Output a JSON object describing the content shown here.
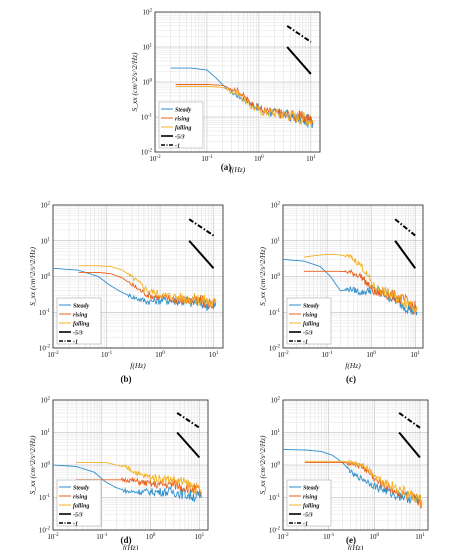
{
  "figure": {
    "panel_labels": [
      "(a)",
      "(b)",
      "(c)",
      "(d)",
      "(e)"
    ],
    "series_colors": {
      "Steady": "#2e8fcd",
      "rising": "#e8611a",
      "falling": "#f2b124",
      "slope": "#000000"
    }
  },
  "chart_data": [
    {
      "panel": "(a)",
      "type": "line",
      "xlabel": "f(Hz)",
      "ylabel": "S_xx (cm^2/s^2/Hz)",
      "x_scale": "log",
      "y_scale": "log",
      "xlim": [
        0.01,
        15
      ],
      "ylim": [
        0.01,
        100
      ],
      "x_ticks": [
        "10^-2",
        "10^-1",
        "10^0",
        "10^1"
      ],
      "y_ticks": [
        "10^-2",
        "10^-1",
        "10^0",
        "10^1",
        "10^2"
      ],
      "legend": {
        "position": "bottom-left",
        "entries": [
          "Steady",
          "rising",
          "falling",
          "-5/3",
          "-1"
        ]
      },
      "series": [
        {
          "name": "Steady",
          "x": [
            0.02,
            0.05,
            0.1,
            0.15,
            0.25,
            0.4,
            0.7,
            1.2,
            3,
            6,
            11
          ],
          "y": [
            2.5,
            2.5,
            2.2,
            1.3,
            0.6,
            0.4,
            0.25,
            0.15,
            0.12,
            0.09,
            0.07
          ]
        },
        {
          "name": "rising",
          "x": [
            0.025,
            0.06,
            0.1,
            0.2,
            0.4,
            0.7,
            1.2,
            3,
            6,
            11
          ],
          "y": [
            0.85,
            0.85,
            0.85,
            0.8,
            0.55,
            0.25,
            0.15,
            0.12,
            0.1,
            0.08
          ]
        },
        {
          "name": "falling",
          "x": [
            0.025,
            0.06,
            0.1,
            0.2,
            0.4,
            0.7,
            1.2,
            3,
            6,
            11
          ],
          "y": [
            0.75,
            0.75,
            0.75,
            0.7,
            0.45,
            0.2,
            0.14,
            0.12,
            0.1,
            0.08
          ]
        }
      ],
      "reference_lines": [
        {
          "name": "-5/3",
          "x": [
            3.5,
            10
          ],
          "y": [
            10,
            1.7
          ]
        },
        {
          "name": "-1",
          "x": [
            3.5,
            10
          ],
          "y": [
            40,
            14
          ]
        }
      ]
    },
    {
      "panel": "(b)",
      "type": "line",
      "xlabel": "f(Hz)",
      "ylabel": "S_xx (cm^2/s^2/Hz)",
      "x_scale": "log",
      "y_scale": "log",
      "xlim": [
        0.01,
        15
      ],
      "ylim": [
        0.01,
        100
      ],
      "x_ticks": [
        "10^-2",
        "10^-1",
        "10^0",
        "10^1"
      ],
      "y_ticks": [
        "10^-2",
        "10^-1",
        "10^0",
        "10^1",
        "10^2"
      ],
      "legend": {
        "position": "bottom-left",
        "entries": [
          "Steady",
          "rising",
          "falling",
          "-5/3",
          "-1"
        ]
      },
      "series": [
        {
          "name": "Steady",
          "x": [
            0.01,
            0.03,
            0.07,
            0.12,
            0.2,
            0.35,
            0.6,
            1.2,
            3,
            6,
            11
          ],
          "y": [
            1.7,
            1.5,
            1.0,
            0.55,
            0.35,
            0.25,
            0.2,
            0.22,
            0.2,
            0.18,
            0.15
          ]
        },
        {
          "name": "rising",
          "x": [
            0.03,
            0.07,
            0.12,
            0.2,
            0.35,
            0.6,
            1.2,
            3,
            6,
            11
          ],
          "y": [
            1.3,
            1.3,
            1.2,
            0.9,
            0.5,
            0.3,
            0.25,
            0.22,
            0.2,
            0.17
          ]
        },
        {
          "name": "falling",
          "x": [
            0.03,
            0.07,
            0.12,
            0.2,
            0.35,
            0.6,
            1.2,
            3,
            6,
            11
          ],
          "y": [
            2.0,
            2.0,
            1.9,
            1.5,
            0.8,
            0.4,
            0.3,
            0.25,
            0.22,
            0.18
          ]
        }
      ],
      "reference_lines": [
        {
          "name": "-5/3",
          "x": [
            3.5,
            10
          ],
          "y": [
            10,
            1.7
          ]
        },
        {
          "name": "-1",
          "x": [
            3.5,
            10
          ],
          "y": [
            40,
            14
          ]
        }
      ]
    },
    {
      "panel": "(c)",
      "type": "line",
      "xlabel": "f(Hz)",
      "ylabel": "S_xx (cm^2/s^2/Hz)",
      "x_scale": "log",
      "y_scale": "log",
      "xlim": [
        0.01,
        15
      ],
      "ylim": [
        0.01,
        100
      ],
      "x_ticks": [
        "10^-2",
        "10^-1",
        "10^0",
        "10^1"
      ],
      "y_ticks": [
        "10^-2",
        "10^-1",
        "10^0",
        "10^1",
        "10^2"
      ],
      "legend": {
        "position": "bottom-left",
        "entries": [
          "Steady",
          "rising",
          "falling",
          "-5/3",
          "-1"
        ]
      },
      "series": [
        {
          "name": "Steady",
          "x": [
            0.01,
            0.03,
            0.07,
            0.12,
            0.2,
            0.35,
            0.6,
            1.2,
            3,
            6,
            11
          ],
          "y": [
            3.0,
            2.7,
            1.9,
            1.0,
            0.4,
            0.45,
            0.35,
            0.45,
            0.25,
            0.15,
            0.1
          ]
        },
        {
          "name": "rising",
          "x": [
            0.03,
            0.07,
            0.12,
            0.2,
            0.35,
            0.6,
            1.2,
            3,
            6,
            11
          ],
          "y": [
            1.4,
            1.4,
            1.4,
            1.4,
            1.3,
            1.0,
            0.35,
            0.3,
            0.2,
            0.12
          ]
        },
        {
          "name": "falling",
          "x": [
            0.03,
            0.07,
            0.12,
            0.2,
            0.35,
            0.6,
            1.2,
            3,
            6,
            11
          ],
          "y": [
            3.5,
            4.0,
            4.2,
            4.0,
            3.5,
            2.0,
            0.5,
            0.3,
            0.2,
            0.15
          ]
        }
      ],
      "reference_lines": [
        {
          "name": "-5/3",
          "x": [
            3.5,
            10
          ],
          "y": [
            10,
            1.7
          ]
        },
        {
          "name": "-1",
          "x": [
            3.5,
            10
          ],
          "y": [
            40,
            14
          ]
        }
      ]
    },
    {
      "panel": "(d)",
      "type": "line",
      "xlabel": "f(Hz)",
      "ylabel": "S_xx (cm^2/s^2/Hz)",
      "x_scale": "log",
      "y_scale": "log",
      "xlim": [
        0.01,
        15
      ],
      "ylim": [
        0.01,
        100
      ],
      "x_ticks": [
        "10^-2",
        "10^-1",
        "10^0",
        "10^1"
      ],
      "y_ticks": [
        "10^-2",
        "10^-1",
        "10^0",
        "10^1",
        "10^2"
      ],
      "legend": {
        "position": "bottom-left",
        "entries": [
          "Steady",
          "rising",
          "falling",
          "-5/3",
          "-1"
        ]
      },
      "series": [
        {
          "name": "Steady",
          "x": [
            0.01,
            0.03,
            0.07,
            0.12,
            0.2,
            0.35,
            0.6,
            1.2,
            3,
            6,
            11
          ],
          "y": [
            1.0,
            0.9,
            0.6,
            0.3,
            0.2,
            0.15,
            0.15,
            0.15,
            0.15,
            0.12,
            0.1
          ]
        },
        {
          "name": "rising",
          "x": [
            0.03,
            0.07,
            0.12,
            0.2,
            0.35,
            0.6,
            1.2,
            3,
            6,
            11
          ],
          "y": [
            0.35,
            0.35,
            0.35,
            0.35,
            0.35,
            0.3,
            0.25,
            0.25,
            0.2,
            0.15
          ]
        },
        {
          "name": "falling",
          "x": [
            0.03,
            0.07,
            0.12,
            0.2,
            0.35,
            0.6,
            1.2,
            3,
            6,
            11
          ],
          "y": [
            1.2,
            1.2,
            1.2,
            1.0,
            0.8,
            0.5,
            0.4,
            0.35,
            0.25,
            0.15
          ]
        }
      ],
      "reference_lines": [
        {
          "name": "-5/3",
          "x": [
            3.5,
            10
          ],
          "y": [
            10,
            1.7
          ]
        },
        {
          "name": "-1",
          "x": [
            3.5,
            10
          ],
          "y": [
            40,
            14
          ]
        }
      ]
    },
    {
      "panel": "(e)",
      "type": "line",
      "xlabel": "f(Hz)",
      "ylabel": "S_xx (cm^2/s^2/Hz)",
      "x_scale": "log",
      "y_scale": "log",
      "xlim": [
        0.01,
        15
      ],
      "ylim": [
        0.01,
        100
      ],
      "x_ticks": [
        "10^-2",
        "10^-1",
        "10^0",
        "10^1"
      ],
      "y_ticks": [
        "10^-2",
        "10^-1",
        "10^0",
        "10^1",
        "10^2"
      ],
      "legend": {
        "position": "bottom-left",
        "entries": [
          "Steady",
          "rising",
          "falling",
          "-5/3",
          "-1"
        ]
      },
      "series": [
        {
          "name": "Steady",
          "x": [
            0.01,
            0.03,
            0.07,
            0.12,
            0.2,
            0.35,
            0.6,
            1.2,
            3,
            6,
            11
          ],
          "y": [
            3.0,
            2.9,
            2.6,
            2.0,
            1.2,
            0.5,
            0.35,
            0.2,
            0.12,
            0.1,
            0.07
          ]
        },
        {
          "name": "rising",
          "x": [
            0.03,
            0.07,
            0.12,
            0.2,
            0.35,
            0.6,
            1.2,
            3,
            6,
            11
          ],
          "y": [
            1.2,
            1.2,
            1.2,
            1.2,
            1.1,
            0.8,
            0.3,
            0.15,
            0.1,
            0.07
          ]
        },
        {
          "name": "falling",
          "x": [
            0.03,
            0.07,
            0.12,
            0.2,
            0.35,
            0.6,
            1.2,
            3,
            6,
            11
          ],
          "y": [
            1.3,
            1.3,
            1.3,
            1.3,
            1.2,
            1.0,
            0.4,
            0.2,
            0.12,
            0.08
          ]
        }
      ],
      "reference_lines": [
        {
          "name": "-5/3",
          "x": [
            3.5,
            10
          ],
          "y": [
            10,
            1.7
          ]
        },
        {
          "name": "-1",
          "x": [
            3.5,
            10
          ],
          "y": [
            40,
            14
          ]
        }
      ]
    }
  ]
}
